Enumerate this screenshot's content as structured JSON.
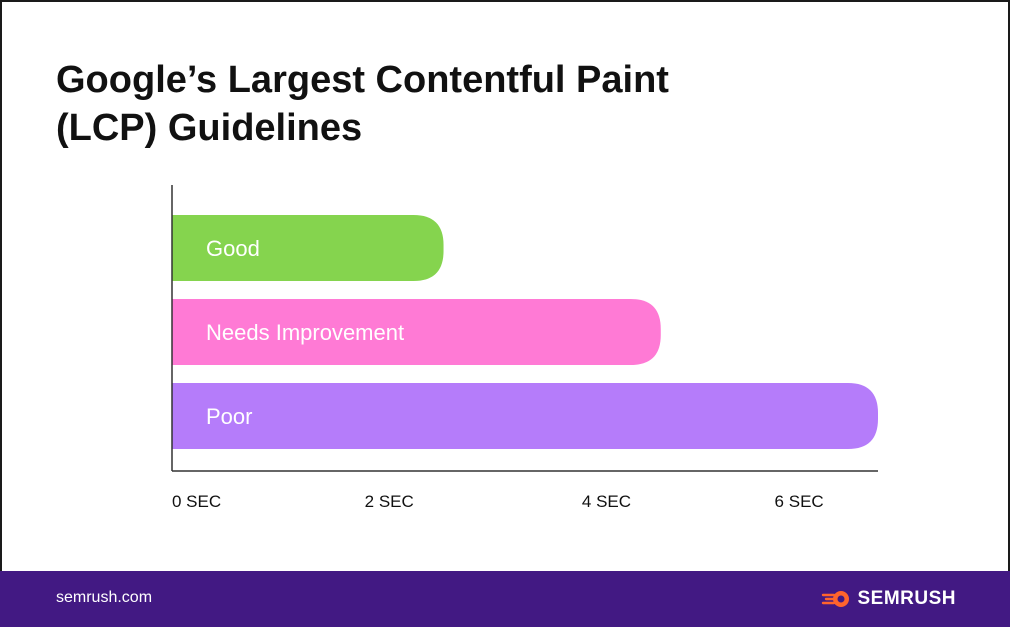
{
  "title_line1": "Google’s Largest Contentful Paint",
  "title_line2": "(LCP) Guidelines",
  "chart_data": {
    "type": "bar",
    "orientation": "horizontal",
    "categories": [
      "Good",
      "Needs Improvement",
      "Poor"
    ],
    "values": [
      2.5,
      4.5,
      6.5
    ],
    "colors": [
      "#85d44e",
      "#ff7ad5",
      "#b57cfa"
    ],
    "xlim": [
      0,
      6.5
    ],
    "ticks": [
      0,
      2,
      4,
      6
    ],
    "tick_labels": [
      "0 SEC",
      "2 SEC",
      "4 SEC",
      "6 SEC"
    ],
    "grid": false,
    "legend": "none"
  },
  "footer": {
    "site": "semrush.com",
    "brand": "SEMRUSH",
    "brand_icon": "semrush-fireball-icon",
    "background": "#421983",
    "brand_accent": "#ff642d"
  }
}
